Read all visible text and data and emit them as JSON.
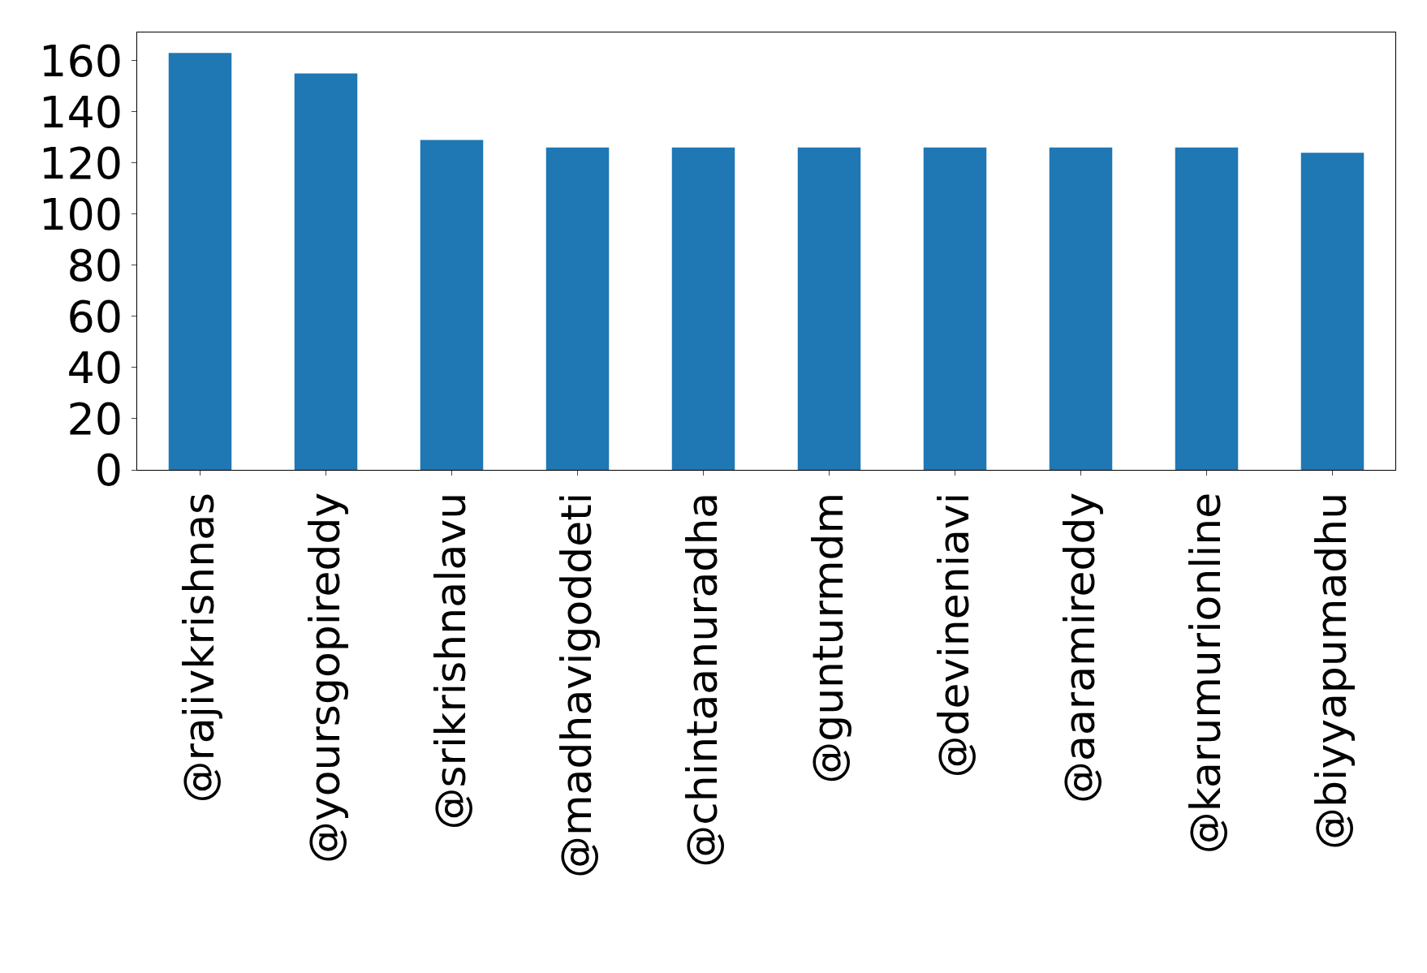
{
  "chart_data": {
    "type": "bar",
    "categories": [
      "@rajivkrishnas",
      "@yoursgopireddy",
      "@srikrishnalavu",
      "@madhavigoddeti",
      "@chintaanuradha",
      "@gunturmdm",
      "@devineniavi",
      "@aaramireddy",
      "@karumurionline",
      "@biyyapumadhu"
    ],
    "values": [
      163,
      155,
      129,
      126,
      126,
      126,
      126,
      126,
      126,
      124
    ],
    "color": "#1f77b4",
    "ylim": [
      0,
      171
    ],
    "yticks": [
      0,
      20,
      40,
      60,
      80,
      100,
      120,
      140,
      160
    ],
    "legend": false
  }
}
